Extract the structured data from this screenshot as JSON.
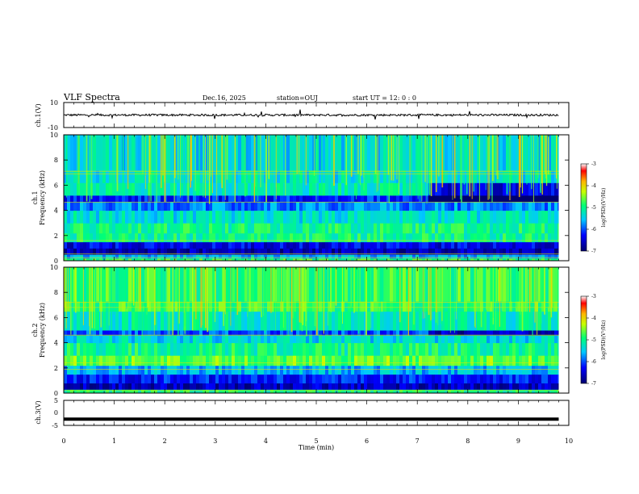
{
  "header": {
    "title": "VLF Spectra",
    "date": "Dec.16, 2025",
    "station": "station=OUJ",
    "start": "start  UT =   12: 0  : 0"
  },
  "chart_data": [
    {
      "type": "line",
      "panel": "ch1-waveform",
      "ylabel": "ch.1(V)",
      "ylim": [
        -10,
        10
      ],
      "y_ticks": [
        "10",
        "-10"
      ],
      "xlim": [
        0,
        10
      ],
      "baseline_value": 0,
      "trace_end_min": 9.8
    },
    {
      "type": "heatmap",
      "panel": "ch1-spectrogram",
      "ylabel_line1": "ch.1",
      "ylabel_line2": "Frequency  (kHz)",
      "ylim": [
        0,
        10
      ],
      "y_ticks": [
        "0",
        "2",
        "4",
        "6",
        "8",
        "10"
      ],
      "xlim": [
        0,
        10
      ],
      "data_end_min": 9.8,
      "colorbar": {
        "label": "log(PSD)(V²/Hz)",
        "range": [
          -7,
          -3
        ],
        "ticks": [
          "-3",
          "-4",
          "-5",
          "-6",
          "-7"
        ]
      }
    },
    {
      "type": "heatmap",
      "panel": "ch2-spectrogram",
      "ylabel_line1": "ch.2",
      "ylabel_line2": "Frequency  (kHz)",
      "ylim": [
        0,
        10
      ],
      "y_ticks": [
        "0",
        "2",
        "4",
        "6",
        "8",
        "10"
      ],
      "xlim": [
        0,
        10
      ],
      "data_end_min": 9.8,
      "colorbar": {
        "label": "log(PSD)(V²/Hz)",
        "range": [
          -7,
          -3
        ],
        "ticks": [
          "-3",
          "-4",
          "-5",
          "-6",
          "-7"
        ]
      }
    },
    {
      "type": "line",
      "panel": "ch3-waveform",
      "ylabel": "ch.3(V)",
      "ylim": [
        -5,
        5
      ],
      "y_ticks": [
        "5",
        "0",
        "-5"
      ],
      "xlim": [
        0,
        10
      ],
      "baseline_value": -2.5,
      "trace_end_min": 9.8
    }
  ],
  "x_axis": {
    "label": "Time  (min)",
    "ticks": [
      "0",
      "1",
      "2",
      "3",
      "4",
      "5",
      "6",
      "7",
      "8",
      "9",
      "10"
    ]
  }
}
